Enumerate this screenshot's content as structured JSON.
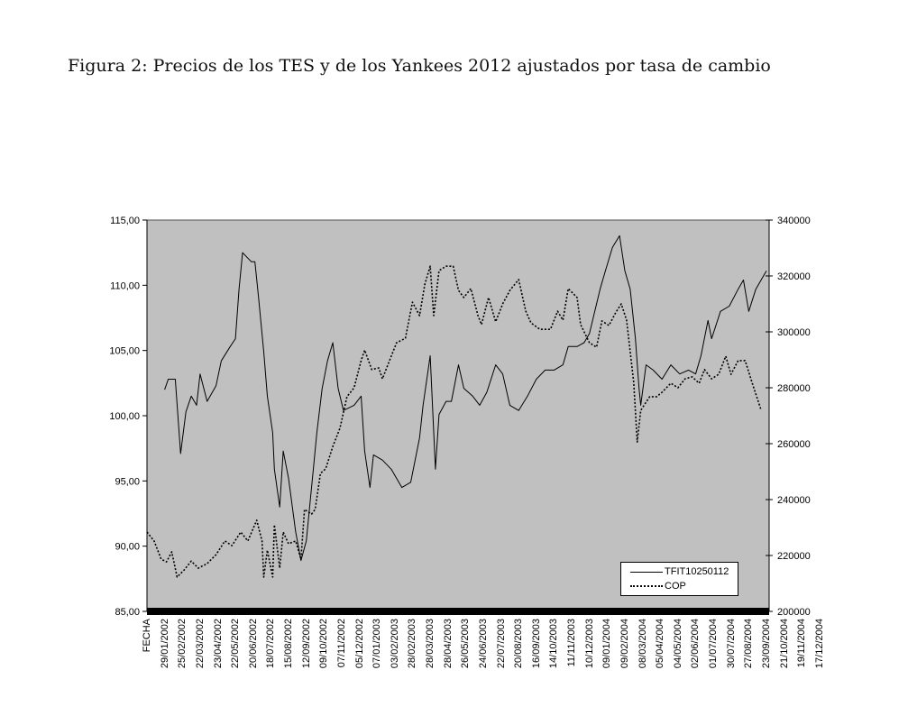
{
  "title": "Figura 2: Precios de los TES y de los Yankees 2012 ajustados por tasa de cambio",
  "chart_data": {
    "type": "line",
    "title": "Figura 2: Precios de los TES y de los Yankees 2012 ajustados por tasa de cambio",
    "xlabel": "FECHA",
    "categories": [
      "FECHA",
      "29/01/2002",
      "25/02/2002",
      "22/03/2002",
      "23/04/2002",
      "22/05/2002",
      "20/06/2002",
      "18/07/2002",
      "15/08/2002",
      "12/09/2002",
      "09/10/2002",
      "07/11/2002",
      "05/12/2002",
      "07/01/2003",
      "03/02/2003",
      "28/02/2003",
      "28/03/2003",
      "28/04/2003",
      "26/05/2003",
      "24/06/2003",
      "22/07/2003",
      "20/08/2003",
      "16/09/2003",
      "14/10/2003",
      "11/11/2003",
      "10/12/2003",
      "09/01/2004",
      "09/02/2004",
      "08/03/2004",
      "05/04/2004",
      "04/05/2004",
      "02/06/2004",
      "01/07/2004",
      "30/07/2004",
      "27/08/2004",
      "23/09/2004",
      "21/10/2004",
      "19/11/2004",
      "17/12/2004"
    ],
    "y_left": {
      "ylim": [
        85,
        115
      ],
      "ticks": [
        "85,00",
        "90,00",
        "95,00",
        "100,00",
        "105,00",
        "110,00",
        "115,00"
      ],
      "tick_values": [
        85,
        90,
        95,
        100,
        105,
        110,
        115
      ]
    },
    "y_right": {
      "ylim": [
        200000,
        340000
      ],
      "ticks": [
        "200000",
        "220000",
        "240000",
        "260000",
        "280000",
        "300000",
        "320000",
        "340000"
      ],
      "tick_values": [
        200000,
        220000,
        240000,
        260000,
        280000,
        300000,
        320000,
        340000
      ]
    },
    "legend_position": "bottom-right",
    "grid": false,
    "series": [
      {
        "name": "TFIT10250112",
        "axis": "left",
        "style": "solid",
        "x": [
          1.0,
          1.2,
          1.6,
          1.9,
          2.2,
          2.5,
          2.8,
          3.0,
          3.4,
          3.9,
          4.2,
          4.7,
          5.0,
          5.2,
          5.4,
          5.9,
          6.1,
          6.3,
          6.6,
          6.8,
          7.1,
          7.2,
          7.5,
          7.7,
          8.0,
          8.4,
          8.7,
          9.0,
          9.4,
          9.6,
          9.9,
          10.2,
          10.5,
          10.8,
          11.1,
          11.7,
          12.1,
          12.3,
          12.6,
          12.8,
          13.3,
          13.8,
          14.4,
          14.9,
          15.4,
          15.6,
          16.0,
          16.3,
          16.5,
          16.9,
          17.2,
          17.6,
          17.9,
          18.4,
          18.8,
          19.2,
          19.7,
          20.1,
          20.5,
          21.0,
          21.5,
          22.0,
          22.5,
          23.0,
          23.5,
          23.8,
          24.3,
          24.7,
          25.0,
          25.6,
          25.9,
          26.3,
          26.7,
          27.0,
          27.3,
          27.6,
          27.8,
          27.9,
          28.2,
          28.6,
          29.1,
          29.6,
          30.1,
          30.6,
          31.0,
          31.3,
          31.7,
          31.9,
          32.4,
          32.9,
          33.4,
          33.7,
          34.0,
          34.4,
          34.7,
          35.0
        ],
        "values": [
          102.0,
          102.8,
          102.8,
          97.1,
          100.3,
          101.5,
          100.8,
          103.2,
          101.1,
          102.3,
          104.2,
          105.3,
          105.9,
          109.7,
          112.5,
          111.8,
          111.8,
          109.1,
          104.9,
          101.5,
          98.7,
          95.9,
          93.0,
          97.3,
          95.2,
          91.1,
          88.9,
          90.4,
          95.9,
          98.7,
          102.1,
          104.2,
          105.6,
          102.1,
          100.4,
          100.8,
          101.5,
          97.3,
          94.5,
          97.0,
          96.6,
          95.9,
          94.5,
          94.9,
          98.3,
          100.8,
          104.6,
          95.9,
          100.1,
          101.1,
          101.1,
          103.9,
          102.1,
          101.5,
          100.8,
          101.8,
          103.9,
          103.2,
          100.8,
          100.4,
          101.5,
          102.8,
          103.5,
          103.5,
          103.9,
          105.3,
          105.3,
          105.6,
          106.3,
          109.7,
          111.1,
          112.9,
          113.8,
          111.1,
          109.7,
          105.9,
          102.1,
          100.8,
          103.9,
          103.5,
          102.8,
          103.9,
          103.2,
          103.5,
          103.2,
          104.6,
          107.3,
          105.9,
          108.0,
          108.4,
          109.7,
          110.4,
          108.0,
          109.7,
          110.4,
          111.1
        ]
      },
      {
        "name": "COP",
        "axis": "right",
        "style": "dotted",
        "x": [
          0.0,
          0.4,
          0.8,
          1.1,
          1.4,
          1.7,
          2.1,
          2.5,
          2.9,
          3.4,
          3.9,
          4.4,
          4.8,
          5.3,
          5.7,
          6.2,
          6.5,
          6.6,
          6.8,
          7.1,
          7.2,
          7.5,
          7.7,
          8.0,
          8.4,
          8.7,
          8.9,
          9.3,
          9.5,
          9.8,
          10.1,
          10.5,
          10.9,
          11.3,
          11.7,
          12.1,
          12.3,
          12.7,
          13.1,
          13.3,
          13.8,
          14.1,
          14.6,
          15.0,
          15.4,
          15.7,
          16.0,
          16.2,
          16.5,
          16.9,
          17.3,
          17.6,
          17.9,
          18.3,
          18.7,
          18.9,
          19.3,
          19.7,
          20.1,
          20.5,
          21.0,
          21.4,
          21.7,
          22.2,
          22.8,
          23.2,
          23.5,
          23.8,
          24.3,
          24.5,
          25.0,
          25.4,
          25.7,
          26.1,
          26.5,
          26.8,
          27.1,
          27.3,
          27.5,
          27.7,
          27.9,
          28.4,
          28.8,
          29.1,
          29.6,
          30.0,
          30.4,
          30.8,
          31.2,
          31.5,
          31.9,
          32.3,
          32.7,
          33.0,
          33.4,
          33.8,
          34.2,
          34.7
        ],
        "values": [
          228400,
          225200,
          218700,
          217700,
          221300,
          212300,
          214800,
          218000,
          215500,
          217100,
          220300,
          225200,
          223500,
          228400,
          225200,
          232600,
          225200,
          212300,
          221900,
          212300,
          231000,
          215500,
          228400,
          224200,
          225200,
          218700,
          236500,
          234800,
          236500,
          249400,
          251000,
          259000,
          265500,
          276800,
          280000,
          289700,
          293500,
          286500,
          287100,
          283200,
          291300,
          296100,
          297700,
          310600,
          305800,
          317100,
          323500,
          305800,
          321900,
          323500,
          323500,
          314800,
          312300,
          315500,
          305800,
          302600,
          312300,
          303600,
          310000,
          314800,
          318700,
          307400,
          303200,
          300900,
          300900,
          307400,
          304200,
          315500,
          312300,
          302600,
          296100,
          294500,
          303900,
          302300,
          307100,
          310000,
          304200,
          292900,
          282000,
          260600,
          271900,
          276800,
          276800,
          278400,
          281600,
          280000,
          283200,
          283900,
          281600,
          286500,
          283200,
          284800,
          291300,
          284800,
          289700,
          289700,
          281600,
          272000
        ]
      }
    ]
  }
}
